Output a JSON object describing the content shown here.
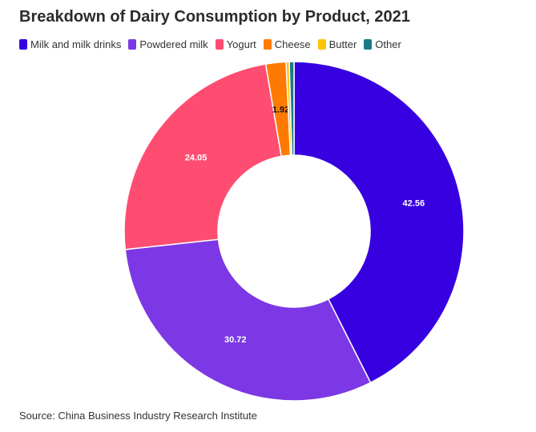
{
  "chart_data": {
    "type": "pie",
    "variant": "donut",
    "title": "Breakdown of Dairy Consumption by Product, 2021",
    "categories": [
      "Milk and milk drinks",
      "Powdered milk",
      "Yogurt",
      "Cheese",
      "Butter",
      "Other"
    ],
    "values": [
      42.56,
      30.72,
      24.05,
      1.92,
      0.3,
      0.45
    ],
    "data_labels": [
      "42.56",
      "30.72",
      "24.05",
      "1.92",
      "",
      ""
    ],
    "colors": [
      "#3700e0",
      "#7c38e4",
      "#ff4d72",
      "#ff7a00",
      "#ffc400",
      "#1b7a86"
    ],
    "legend_position": "top",
    "source": "Source: China Business Industry Research Institute"
  }
}
